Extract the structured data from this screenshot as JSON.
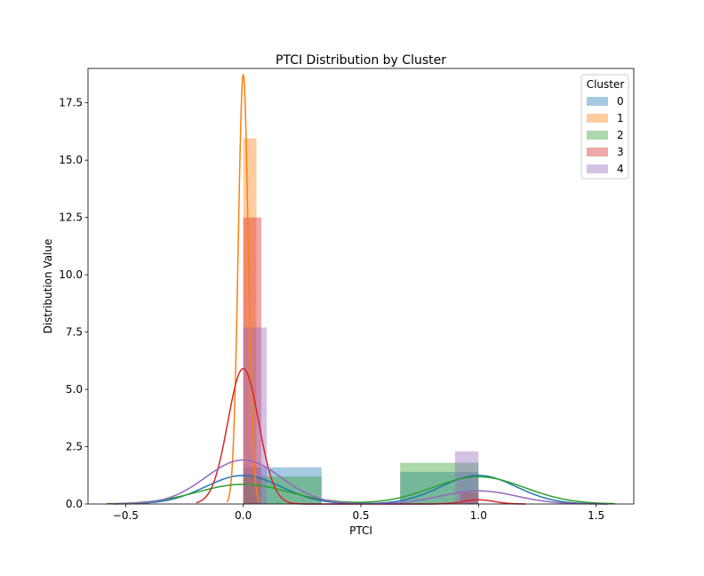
{
  "chart_data": {
    "type": "bar",
    "title": "PTCI Distribution by Cluster",
    "xlabel": "PTCI",
    "ylabel": "Distribution Value",
    "xlim": [
      -0.66,
      1.66
    ],
    "ylim": [
      0,
      19.0
    ],
    "x_ticks": [
      -0.5,
      0.0,
      0.5,
      1.0,
      1.5
    ],
    "x_tick_labels": [
      "−0.5",
      "0.0",
      "0.5",
      "1.0",
      "1.5"
    ],
    "y_ticks": [
      0.0,
      2.5,
      5.0,
      7.5,
      10.0,
      12.5,
      15.0,
      17.5
    ],
    "y_tick_labels": [
      "0.0",
      "2.5",
      "5.0",
      "7.5",
      "10.0",
      "12.5",
      "15.0",
      "17.5"
    ],
    "grid": false,
    "legend": {
      "title": "Cluster",
      "placement": "top-right"
    },
    "series": [
      {
        "name": "0",
        "color": "#1f77b4",
        "bars": [
          {
            "x0": 0.0,
            "x1": 0.333,
            "height": 1.6
          },
          {
            "x0": 0.667,
            "x1": 1.0,
            "height": 1.4
          }
        ],
        "kde": {
          "components": [
            {
              "mu": 0.0,
              "sigma": 0.16,
              "weight": 0.5
            },
            {
              "mu": 1.0,
              "sigma": 0.16,
              "weight": 0.5
            }
          ],
          "range": [
            -0.55,
            1.55
          ]
        }
      },
      {
        "name": "1",
        "color": "#ff7f0e",
        "bars": [
          {
            "x0": 0.0,
            "x1": 0.056,
            "height": 15.95
          }
        ],
        "kde": {
          "components": [
            {
              "mu": 0.0,
              "sigma": 0.0213,
              "weight": 1.0
            }
          ],
          "range": [
            -0.07,
            0.07
          ]
        }
      },
      {
        "name": "2",
        "color": "#2ca02c",
        "bars": [
          {
            "x0": 0.0,
            "x1": 0.333,
            "height": 1.2
          },
          {
            "x0": 0.667,
            "x1": 1.0,
            "height": 1.8
          }
        ],
        "kde": {
          "components": [
            {
              "mu": 0.0,
              "sigma": 0.195,
              "weight": 0.42
            },
            {
              "mu": 1.0,
              "sigma": 0.195,
              "weight": 0.58
            }
          ],
          "range": [
            -0.58,
            1.58
          ]
        }
      },
      {
        "name": "3",
        "color": "#d62728",
        "bars": [
          {
            "x0": 0.0,
            "x1": 0.077,
            "height": 12.5
          },
          {
            "x0": 0.923,
            "x1": 1.0,
            "height": 0.5
          }
        ],
        "kde": {
          "components": [
            {
              "mu": 0.0,
              "sigma": 0.0655,
              "weight": 0.97
            },
            {
              "mu": 1.0,
              "sigma": 0.0655,
              "weight": 0.03
            }
          ],
          "range": [
            -0.2,
            1.2
          ]
        }
      },
      {
        "name": "4",
        "color": "#9467bd",
        "bars": [
          {
            "x0": 0.0,
            "x1": 0.1,
            "height": 7.7
          },
          {
            "x0": 0.9,
            "x1": 1.0,
            "height": 2.3
          }
        ],
        "kde": {
          "components": [
            {
              "mu": 0.0,
              "sigma": 0.16,
              "weight": 0.77
            },
            {
              "mu": 1.0,
              "sigma": 0.16,
              "weight": 0.23
            }
          ],
          "range": [
            -0.55,
            1.55
          ]
        }
      }
    ]
  }
}
